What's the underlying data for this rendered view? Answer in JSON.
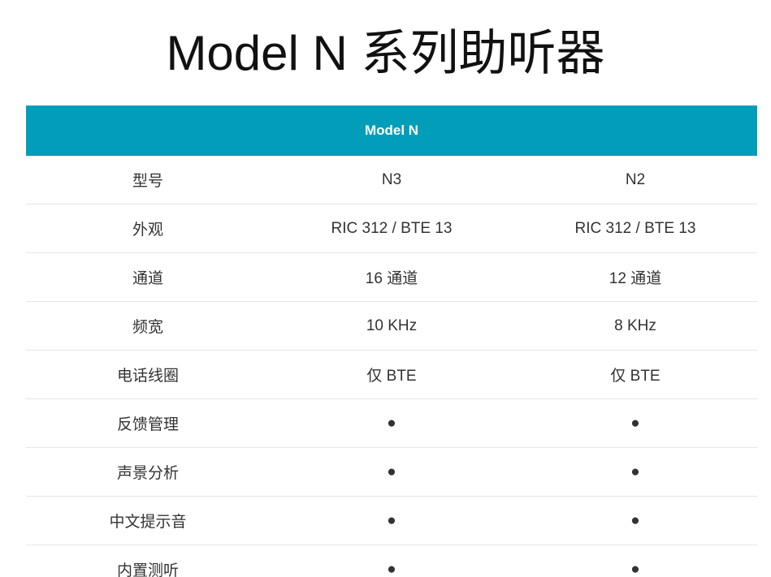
{
  "title": "Model N 系列助听器",
  "table": {
    "header": "Model N",
    "rows": [
      [
        "型号",
        "N3",
        "N2"
      ],
      [
        "外观",
        "RIC 312 / BTE 13",
        "RIC 312 / BTE 13"
      ],
      [
        "通道",
        "16 通道",
        "12 通道"
      ],
      [
        "频宽",
        "10 KHz",
        "8 KHz"
      ],
      [
        "电话线圈",
        "仅 BTE",
        "仅 BTE"
      ],
      [
        "反馈管理",
        "●",
        "●"
      ],
      [
        "声景分析",
        "●",
        "●"
      ],
      [
        "中文提示音",
        "●",
        "●"
      ],
      [
        "内置测听",
        "●",
        "●"
      ]
    ]
  }
}
